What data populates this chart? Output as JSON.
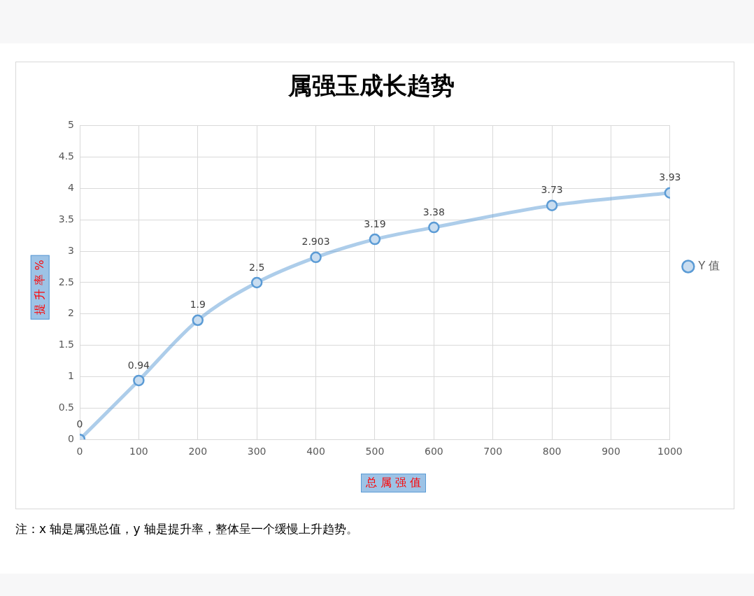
{
  "chart_data": {
    "type": "line",
    "title": "属强玉成长趋势",
    "xlabel": "总 属 强 值",
    "ylabel": "提 升 率 %",
    "series": [
      {
        "name": "Y 值",
        "color": "#5b9bd5",
        "x": [
          0,
          100,
          200,
          300,
          400,
          500,
          600,
          800,
          1000
        ],
        "values": [
          0,
          0.94,
          1.9,
          2.5,
          2.903,
          3.19,
          3.38,
          3.73,
          3.93
        ]
      }
    ],
    "xlim": [
      0,
      1000
    ],
    "xticks": [
      0,
      100,
      200,
      300,
      400,
      500,
      600,
      700,
      800,
      900,
      1000
    ],
    "ylim": [
      0,
      5
    ],
    "yticks": [
      0,
      0.5,
      1,
      1.5,
      2,
      2.5,
      3,
      3.5,
      4,
      4.5,
      5
    ],
    "grid": true,
    "legend": "right",
    "marker": "circle",
    "line_style": "solid",
    "data_labels": true,
    "annotations": [
      "注：x 轴是属强总值，y 轴是提升率，整体呈一个缓慢上升趋势。"
    ]
  }
}
